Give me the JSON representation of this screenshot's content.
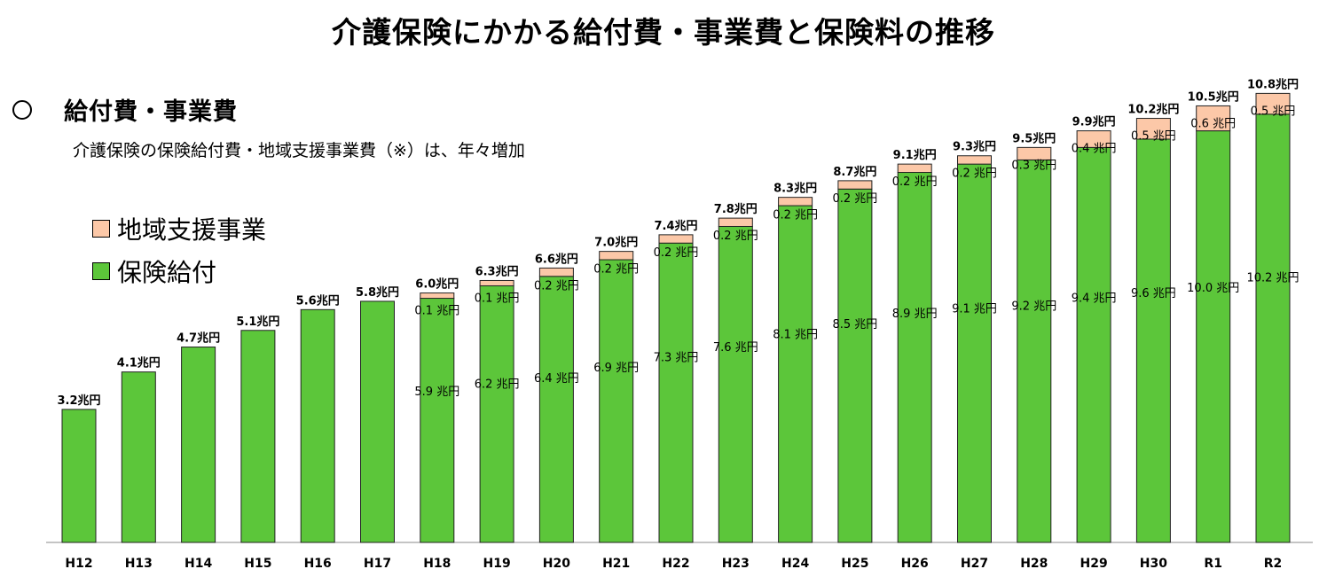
{
  "title": "介護保険にかかる給付費・事業費と保険料の推移",
  "section": {
    "heading": "給付費・事業費",
    "subtitle": "介護保険の保険給付費・地域支援事業費（※）は、年々増加"
  },
  "chart_data": {
    "type": "bar",
    "stacked": true,
    "unit": "兆円",
    "categories": [
      "H12",
      "H13",
      "H14",
      "H15",
      "H16",
      "H17",
      "H18",
      "H19",
      "H20",
      "H21",
      "H22",
      "H23",
      "H24",
      "H25",
      "H26",
      "H27",
      "H28",
      "H29",
      "H30",
      "R1",
      "R2"
    ],
    "totals": [
      3.2,
      4.1,
      4.7,
      5.1,
      5.6,
      5.8,
      6.0,
      6.3,
      6.6,
      7.0,
      7.4,
      7.8,
      8.3,
      8.7,
      9.1,
      9.3,
      9.5,
      9.9,
      10.2,
      10.5,
      10.8
    ],
    "total_labels": [
      "3.2兆円",
      "4.1兆円",
      "4.7兆円",
      "5.1兆円",
      "5.6兆円",
      "5.8兆円",
      "6.0兆円",
      "6.3兆円",
      "6.6兆円",
      "7.0兆円",
      "7.4兆円",
      "7.8兆円",
      "8.3兆円",
      "8.7兆円",
      "9.1兆円",
      "9.3兆円",
      "9.5兆円",
      "9.9兆円",
      "10.2兆円",
      "10.5兆円",
      "10.8兆円"
    ],
    "series": [
      {
        "name": "保険給付",
        "color": "#5cc63a",
        "values": [
          3.2,
          4.1,
          4.7,
          5.1,
          5.6,
          5.8,
          5.9,
          6.2,
          6.4,
          6.9,
          7.3,
          7.6,
          8.1,
          8.5,
          8.9,
          9.1,
          9.2,
          9.4,
          9.6,
          10.0,
          10.2
        ],
        "labels": [
          null,
          null,
          null,
          null,
          null,
          null,
          "5.9 兆円",
          "6.2 兆円",
          "6.4 兆円",
          "6.9 兆円",
          "7.3 兆円",
          "7.6 兆円",
          "8.1 兆円",
          "8.5 兆円",
          "8.9 兆円",
          "9.1 兆円",
          "9.2 兆円",
          "9.4 兆円",
          "9.6 兆円",
          "10.0 兆円",
          "10.2 兆円"
        ]
      },
      {
        "name": "地域支援事業",
        "color": "#fcc8a8",
        "values": [
          0,
          0,
          0,
          0,
          0,
          0,
          0.1,
          0.1,
          0.2,
          0.2,
          0.2,
          0.2,
          0.2,
          0.2,
          0.2,
          0.2,
          0.3,
          0.4,
          0.5,
          0.6,
          0.5
        ],
        "labels": [
          null,
          null,
          null,
          null,
          null,
          null,
          "0.1 兆円",
          "0.1 兆円",
          "0.2 兆円",
          "0.2 兆円",
          "0.2 兆円",
          "0.2 兆円",
          "0.2 兆円",
          "0.2 兆円",
          "0.2 兆円",
          "0.2 兆円",
          "0.3 兆円",
          "0.4 兆円",
          "0.5 兆円",
          "0.6 兆円",
          "0.5 兆円"
        ]
      }
    ],
    "legend_order": [
      "地域支援事業",
      "保険給付"
    ],
    "ylim": [
      0,
      11
    ],
    "grid": false,
    "legend_position": "top-left"
  }
}
